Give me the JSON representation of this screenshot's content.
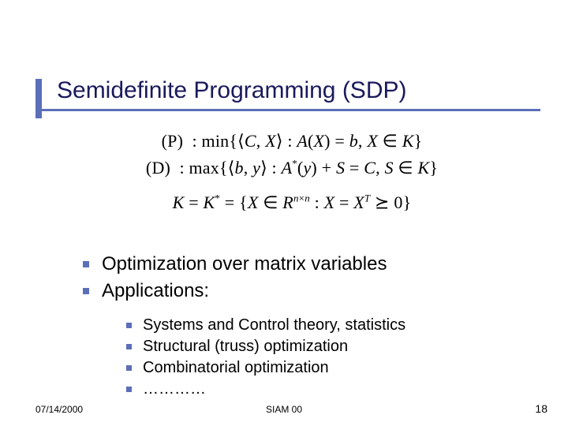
{
  "colors": {
    "accent": "#5b6eb8",
    "title_text": "#1a1a5c",
    "body_text": "#000000",
    "background": "#ffffff"
  },
  "title": "Semidefinite Programming (SDP)",
  "math": {
    "line1_html": "(P)&nbsp;&nbsp;: min{⟨<i>C</i>, <i>X</i>⟩ : <i>A</i>(<i>X</i>) = <i>b</i>, <i>X</i> ∈ <i>K</i>}",
    "line2_html": "(D)&nbsp;&nbsp;: max{⟨<i>b</i>, <i>y</i>⟩ : <i>A</i><sup>*</sup>(<i>y</i>) + <i>S</i> = <i>C</i>, <i>S</i> ∈ <i>K</i>}",
    "line3_html": "<i>K</i> = <i>K</i><sup>*</sup> = {<i>X</i> ∈ <i>R</i><sup><i>n</i>×<i>n</i></sup> : <i>X</i> = <i>X</i><sup><i>T</i></sup> <span style=\"font-family:Verdana\">⪰</span> 0}"
  },
  "bullets_outer": [
    "Optimization over matrix variables",
    "Applications:"
  ],
  "bullets_inner": [
    "Systems and Control theory, statistics",
    "Structural (truss) optimization",
    "Combinatorial optimization",
    "…………"
  ],
  "footer": {
    "date": "07/14/2000",
    "center": "SIAM 00",
    "page": "18"
  },
  "typography": {
    "title_fontsize": 30,
    "body_fontsize": 24,
    "sub_fontsize": 20,
    "math_fontsize": 22,
    "footer_fontsize": 12
  }
}
